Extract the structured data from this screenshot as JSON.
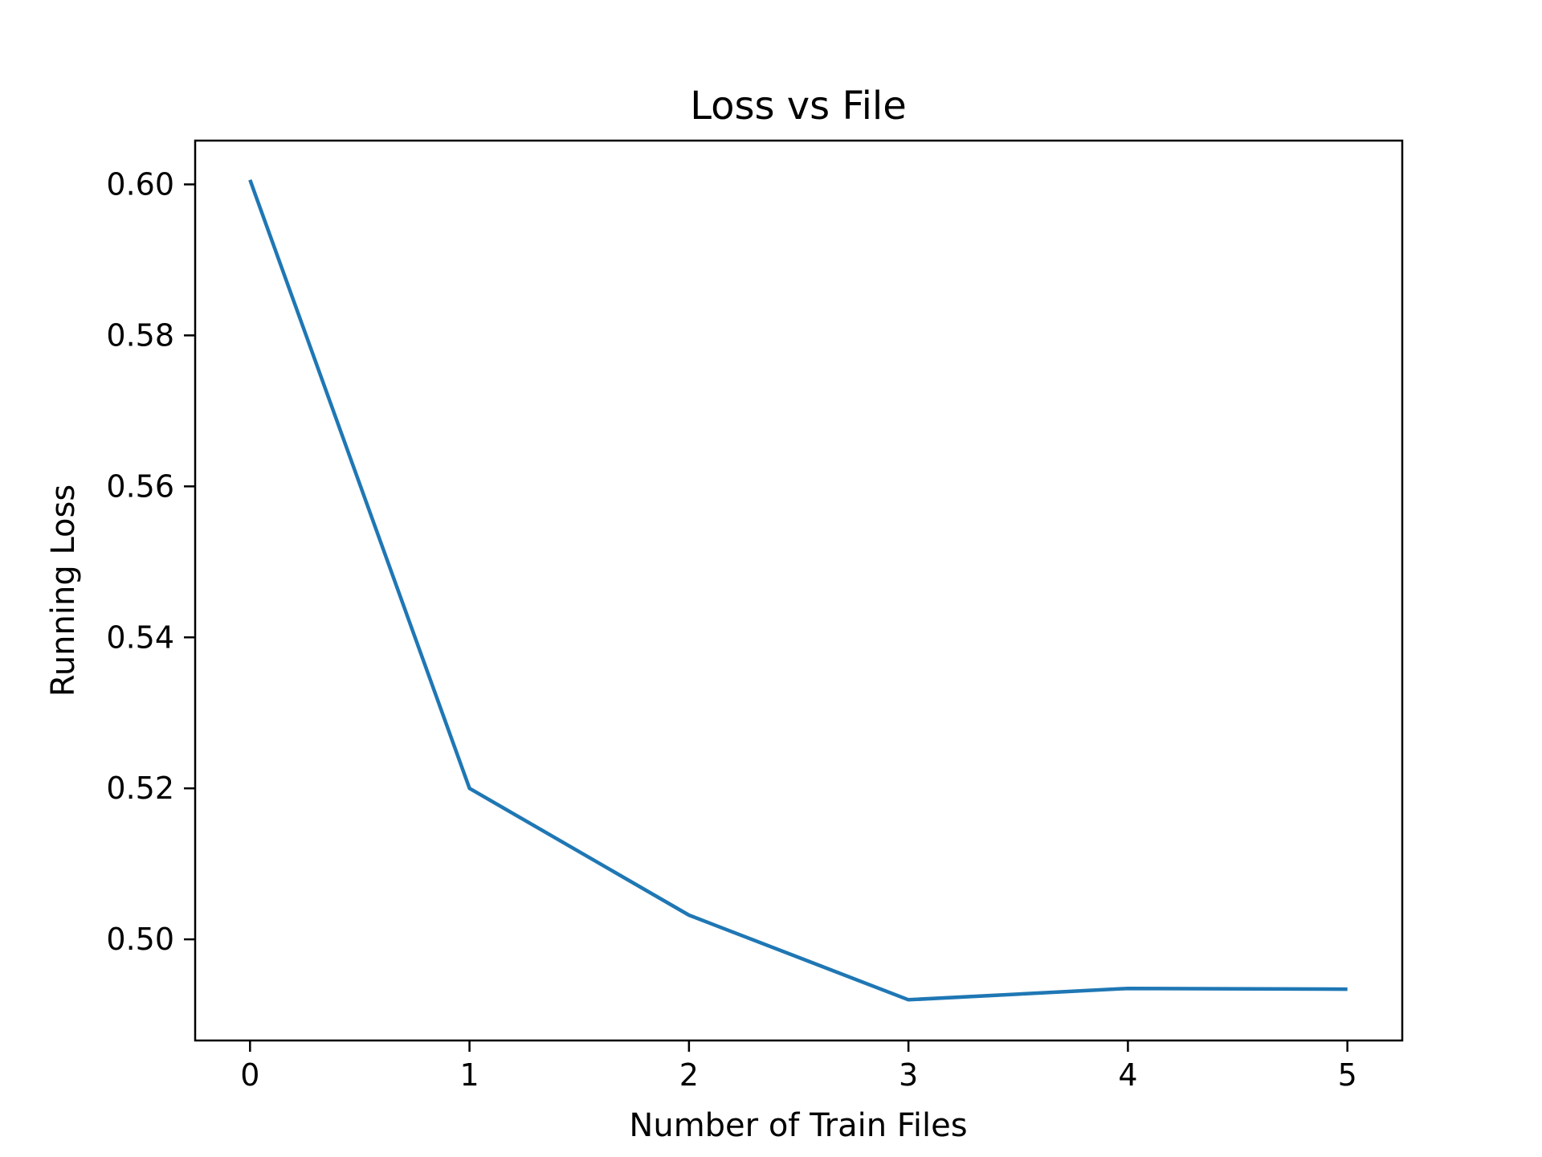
{
  "chart_data": {
    "type": "line",
    "title": "Loss vs File",
    "xlabel": "Number of Train Files",
    "ylabel": "Running Loss",
    "x": [
      0,
      1,
      2,
      3,
      4,
      5
    ],
    "series": [
      {
        "values": [
          0.6006,
          0.52,
          0.5032,
          0.492,
          0.4935,
          0.4934
        ]
      }
    ],
    "xticks": [
      0,
      1,
      2,
      3,
      4,
      5
    ],
    "xtick_labels": [
      "0",
      "1",
      "2",
      "3",
      "4",
      "5"
    ],
    "yticks": [
      0.5,
      0.52,
      0.54,
      0.56,
      0.58,
      0.6
    ],
    "ytick_labels": [
      "0.50",
      "0.52",
      "0.54",
      "0.56",
      "0.58",
      "0.60"
    ],
    "xlim": [
      -0.25,
      5.25
    ],
    "ylim": [
      0.4866,
      0.6058
    ],
    "grid": false,
    "colors": {
      "series": "#1f77b4"
    }
  }
}
